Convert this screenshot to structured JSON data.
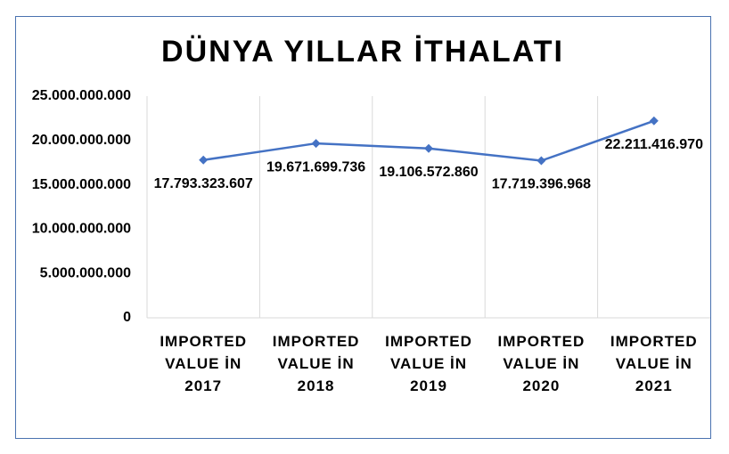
{
  "chart_data": {
    "type": "line",
    "title": "DÜNYA YILLAR İTHALATI",
    "categories": [
      "IMPORTED VALUE İN 2017",
      "IMPORTED VALUE İN 2018",
      "IMPORTED VALUE İN 2019",
      "IMPORTED VALUE İN 2020",
      "IMPORTED VALUE İN 2021"
    ],
    "series": [
      {
        "color": "#4472c4",
        "values": [
          17793323607,
          19671699736,
          19106572860,
          17719396968,
          22211416970
        ],
        "value_labels": [
          "17.793.323.607",
          "19.671.699.736",
          "19.106.572.860",
          "17.719.396.968",
          "22.211.416.970"
        ]
      }
    ],
    "ylim": [
      0,
      25000000000
    ],
    "yticks": [
      0,
      {
        "value": 5000000000,
        "label": "5.000.000.000"
      },
      {
        "value": 10000000000,
        "label": "10.000.000.000"
      },
      {
        "value": 15000000000,
        "label": "15.000.000.000"
      },
      {
        "value": 20000000000,
        "label": "20.000.000.000"
      },
      {
        "value": 25000000000,
        "label": "25.000.000.000"
      }
    ],
    "grid": true
  }
}
